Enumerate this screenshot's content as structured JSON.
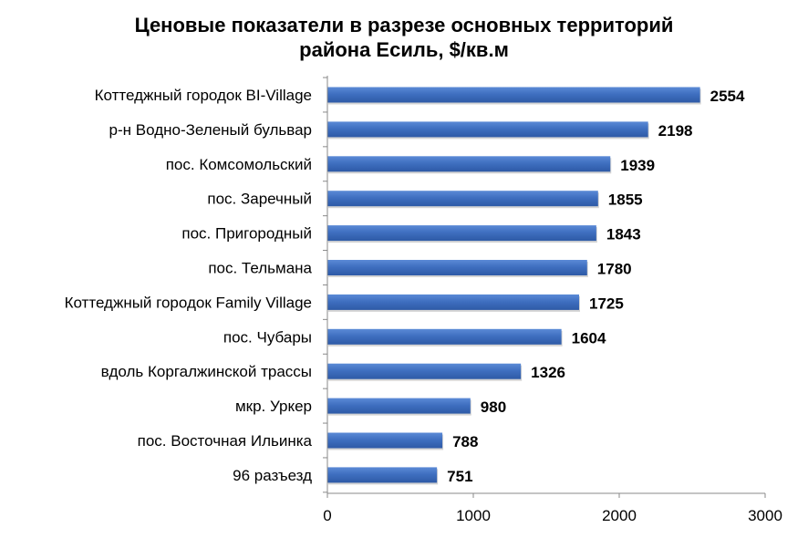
{
  "chart_data": {
    "type": "bar",
    "orientation": "horizontal",
    "title": "Ценовые показатели в разрезе основных территорий района Есиль, $/кв.м",
    "title_lines": [
      "Ценовые показатели в разрезе основных территорий",
      "района Есиль, $/кв.м"
    ],
    "categories": [
      "Коттеджный городок BI-Village",
      "р-н Водно-Зеленый бульвар",
      "пос. Комсомольский",
      "пос. Заречный",
      "пос. Пригородный",
      "пос. Тельмана",
      "Коттеджный городок Family Village",
      "пос. Чубары",
      "вдоль Коргалжинской трассы",
      "мкр. Уркер",
      "пос. Восточная Ильинка",
      "96 разъезд"
    ],
    "values": [
      2554,
      2198,
      1939,
      1855,
      1843,
      1780,
      1725,
      1604,
      1326,
      980,
      788,
      751
    ],
    "xlim": [
      0,
      3000
    ],
    "xticks": [
      0,
      1000,
      2000,
      3000
    ],
    "grid": false,
    "legend": "none",
    "bar_color": "#3f6fc0",
    "bar_gradient_light": "#5b8ad6",
    "bar_gradient_dark": "#2e5aa6"
  }
}
